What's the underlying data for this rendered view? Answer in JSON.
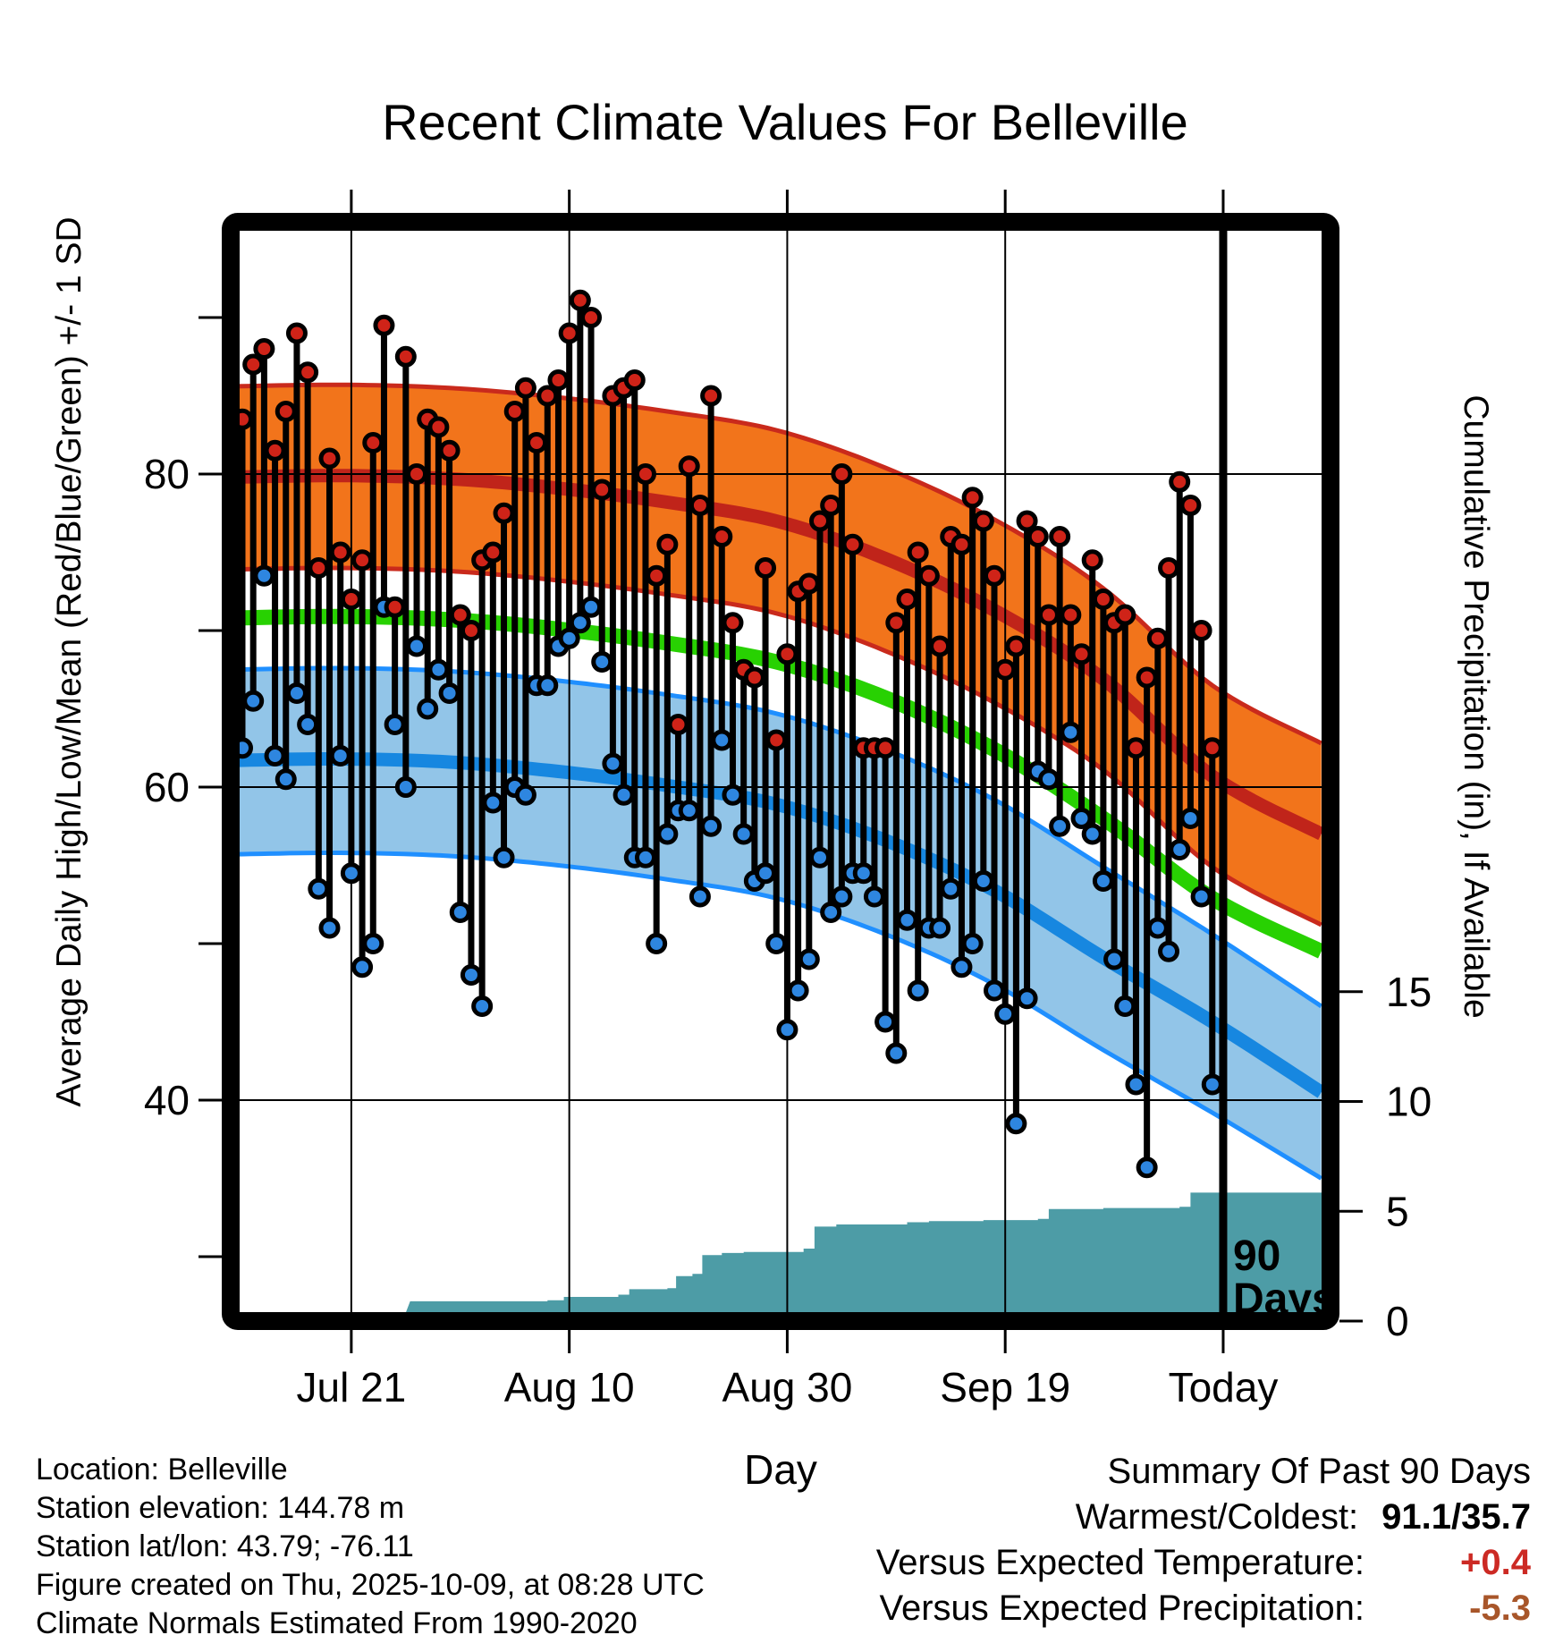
{
  "title": "Recent Climate Values For Belleville",
  "annotation": {
    "line1": "90",
    "line2": "Days"
  },
  "footer": {
    "lines": [
      "Location: Belleville",
      "Station elevation: 144.78 m",
      "Station lat/lon: 43.79; -76.11",
      "Figure created on Thu, 2025-10-09, at 08:28 UTC",
      "Climate Normals Estimated From 1990-2020"
    ]
  },
  "summary": {
    "title": "Summary Of Past 90 Days",
    "rows": [
      {
        "label": "Warmest/Coldest:",
        "value": "91.1/35.7",
        "color": "#000000"
      },
      {
        "label": "Versus Expected Temperature:",
        "value": "+0.4",
        "color": "#cc2a24"
      },
      {
        "label": "Versus Expected Precipitation:",
        "value": "-5.3",
        "color": "#a8562a"
      }
    ]
  },
  "colors": {
    "high_band": "#f2741b",
    "high_edge": "#c92a1c",
    "high_line": "#c0241a",
    "low_band": "#92c5e8",
    "low_edge": "#1f8fff",
    "low_line": "#1787e0",
    "mean_line": "#28d102",
    "precip_fill": "#4d9ca6",
    "dot_high": "#cf2318",
    "dot_low": "#2e86e0",
    "grid": "#000000",
    "frame": "#000000"
  },
  "chart_data": {
    "type": "line",
    "title": "Recent Climate Values For Belleville",
    "xlabel": "Day",
    "ylabel_left": "Average Daily High/Low/Mean (Red/Blue/Green) +/- 1 SD",
    "ylabel_right": "Cumulative Precipitation (in), If Available",
    "temp_axis": {
      "labeled_ticks": [
        40,
        60,
        80
      ],
      "minor_ticks": [
        30,
        50,
        70,
        90
      ],
      "range_note": "left axis, deg F"
    },
    "precip_axis": {
      "labeled_ticks": [
        0,
        5,
        10,
        15
      ],
      "range_note": "right axis, inches"
    },
    "x_ticks": [
      {
        "label": "Jul 21",
        "day": 11
      },
      {
        "label": "Aug 10",
        "day": 31
      },
      {
        "label": "Aug 30",
        "day": 51
      },
      {
        "label": "Sep 19",
        "day": 71
      },
      {
        "label": "Today",
        "day": 91
      }
    ],
    "ninety_day_marker_day": 91,
    "grid": true,
    "legend": "none",
    "normals": {
      "days": [
        0,
        10,
        20,
        30,
        40,
        50,
        60,
        70,
        80,
        90,
        100
      ],
      "high_upper": [
        85.6,
        85.7,
        85.5,
        84.9,
        84.0,
        82.8,
        80.4,
        77.1,
        72.7,
        66.5,
        62.8
      ],
      "high_mean": [
        79.8,
        79.9,
        79.7,
        79.1,
        78.2,
        77.0,
        74.6,
        71.3,
        66.9,
        60.7,
        57.0
      ],
      "high_lower": [
        73.9,
        74.0,
        73.8,
        73.2,
        72.3,
        71.1,
        68.7,
        65.4,
        61.1,
        54.9,
        51.2
      ],
      "mean": [
        70.8,
        70.9,
        70.7,
        70.1,
        69.2,
        68.0,
        65.7,
        62.4,
        58.0,
        52.9,
        49.5
      ],
      "low_upper": [
        67.5,
        67.6,
        67.4,
        66.8,
        65.9,
        64.7,
        62.4,
        59.2,
        54.9,
        50.6,
        46.0
      ],
      "low_mean": [
        61.7,
        61.8,
        61.6,
        61.0,
        60.1,
        58.9,
        56.6,
        53.4,
        49.1,
        45.0,
        40.5
      ],
      "low_lower": [
        55.7,
        55.8,
        55.6,
        55.0,
        54.1,
        52.9,
        50.6,
        47.4,
        43.2,
        39.2,
        35.0
      ]
    },
    "daily_high_low": [
      [
        1,
        83.5,
        62.5
      ],
      [
        2,
        87,
        65.5
      ],
      [
        3,
        88,
        73.5
      ],
      [
        4,
        81.5,
        62
      ],
      [
        5,
        84,
        60.5
      ],
      [
        6,
        89,
        66
      ],
      [
        7,
        86.5,
        64
      ],
      [
        8,
        74,
        53.5
      ],
      [
        9,
        81,
        51
      ],
      [
        10,
        75,
        62
      ],
      [
        11,
        72,
        54.5
      ],
      [
        12,
        74.5,
        48.5
      ],
      [
        13,
        82,
        50
      ],
      [
        14,
        89.5,
        71.5
      ],
      [
        15,
        71.5,
        64
      ],
      [
        16,
        87.5,
        60
      ],
      [
        17,
        80,
        69
      ],
      [
        18,
        83.5,
        65
      ],
      [
        19,
        83,
        67.5
      ],
      [
        20,
        81.5,
        66
      ],
      [
        21,
        71,
        52
      ],
      [
        22,
        70,
        48
      ],
      [
        23,
        74.5,
        46
      ],
      [
        24,
        75,
        59
      ],
      [
        25,
        77.5,
        55.5
      ],
      [
        26,
        84,
        60
      ],
      [
        27,
        85.5,
        59.5
      ],
      [
        28,
        82,
        66.5
      ],
      [
        29,
        85,
        66.5
      ],
      [
        30,
        86,
        69
      ],
      [
        31,
        89,
        69.5
      ],
      [
        32,
        91.1,
        70.5
      ],
      [
        33,
        90,
        71.5
      ],
      [
        34,
        79,
        68
      ],
      [
        35,
        85,
        61.5
      ],
      [
        36,
        85.5,
        59.5
      ],
      [
        37,
        86,
        55.5
      ],
      [
        38,
        80,
        55.5
      ],
      [
        39,
        73.5,
        50
      ],
      [
        40,
        75.5,
        57
      ],
      [
        41,
        64,
        58.5
      ],
      [
        42,
        80.5,
        58.5
      ],
      [
        43,
        78,
        53
      ],
      [
        44,
        85,
        57.5
      ],
      [
        45,
        76,
        63
      ],
      [
        46,
        70.5,
        59.5
      ],
      [
        47,
        67.5,
        57
      ],
      [
        48,
        67,
        54
      ],
      [
        49,
        74,
        54.5
      ],
      [
        50,
        63,
        50
      ],
      [
        51,
        68.5,
        44.5
      ],
      [
        52,
        72.5,
        47
      ],
      [
        53,
        73,
        49
      ],
      [
        54,
        77,
        55.5
      ],
      [
        55,
        78,
        52
      ],
      [
        56,
        80,
        53
      ],
      [
        57,
        75.5,
        54.5
      ],
      [
        58,
        62.5,
        54.5
      ],
      [
        59,
        62.5,
        53
      ],
      [
        60,
        62.5,
        45
      ],
      [
        61,
        70.5,
        43
      ],
      [
        62,
        72,
        51.5
      ],
      [
        63,
        75,
        47
      ],
      [
        64,
        73.5,
        51
      ],
      [
        65,
        69,
        51
      ],
      [
        66,
        76,
        53.5
      ],
      [
        67,
        75.5,
        48.5
      ],
      [
        68,
        78.5,
        50
      ],
      [
        69,
        77,
        54
      ],
      [
        70,
        73.5,
        47
      ],
      [
        71,
        67.5,
        45.5
      ],
      [
        72,
        69,
        38.5
      ],
      [
        73,
        77,
        46.5
      ],
      [
        74,
        76,
        61
      ],
      [
        75,
        71,
        60.5
      ],
      [
        76,
        76,
        57.5
      ],
      [
        77,
        71,
        63.5
      ],
      [
        78,
        68.5,
        58
      ],
      [
        79,
        74.5,
        57
      ],
      [
        80,
        72,
        54
      ],
      [
        81,
        70.5,
        49
      ],
      [
        82,
        71,
        46
      ],
      [
        83,
        62.5,
        41
      ],
      [
        84,
        67,
        35.7
      ],
      [
        85,
        69.5,
        51
      ],
      [
        86,
        74,
        49.5
      ],
      [
        87,
        79.5,
        56
      ],
      [
        88,
        78,
        58
      ],
      [
        89,
        70,
        53
      ],
      [
        90,
        62.5,
        41
      ]
    ],
    "cumulative_precip_steps": [
      [
        15.7,
        0
      ],
      [
        16.4,
        0.9
      ],
      [
        29,
        0.95
      ],
      [
        30.5,
        1.1
      ],
      [
        35.5,
        1.2
      ],
      [
        36.5,
        1.45
      ],
      [
        40,
        1.5
      ],
      [
        40.8,
        2.05
      ],
      [
        42.3,
        2.15
      ],
      [
        43.2,
        3.0
      ],
      [
        45,
        3.1
      ],
      [
        47,
        3.15
      ],
      [
        52.5,
        3.3
      ],
      [
        53.5,
        4.3
      ],
      [
        55.5,
        4.4
      ],
      [
        62,
        4.5
      ],
      [
        64,
        4.55
      ],
      [
        69,
        4.6
      ],
      [
        74,
        4.65
      ],
      [
        75,
        5.1
      ],
      [
        80,
        5.15
      ],
      [
        87,
        5.2
      ],
      [
        88,
        5.85
      ],
      [
        101,
        5.9
      ]
    ]
  }
}
